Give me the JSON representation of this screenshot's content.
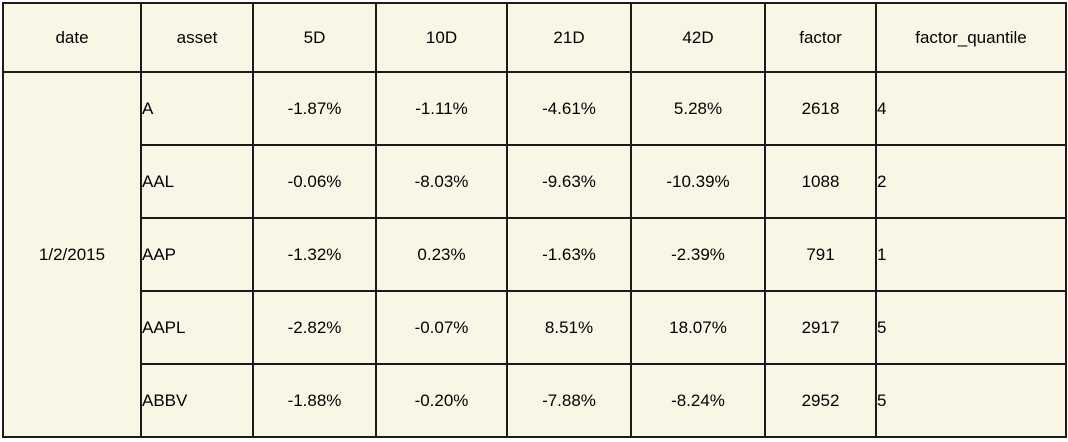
{
  "table": {
    "headers": {
      "date": "date",
      "asset": "asset",
      "d5": "5D",
      "d10": "10D",
      "d21": "21D",
      "d42": "42D",
      "factor": "factor",
      "factor_quantile": "factor_quantile"
    },
    "date": "1/2/2015",
    "rows": [
      {
        "asset": "A",
        "d5": "-1.87%",
        "d10": "-1.11%",
        "d21": "-4.61%",
        "d42": "5.28%",
        "factor": "2618",
        "factor_quantile": "4"
      },
      {
        "asset": "AAL",
        "d5": "-0.06%",
        "d10": "-8.03%",
        "d21": "-9.63%",
        "d42": "-10.39%",
        "factor": "1088",
        "factor_quantile": "2"
      },
      {
        "asset": "AAP",
        "d5": "-1.32%",
        "d10": "0.23%",
        "d21": "-1.63%",
        "d42": "-2.39%",
        "factor": "791",
        "factor_quantile": "1"
      },
      {
        "asset": "AAPL",
        "d5": "-2.82%",
        "d10": "-0.07%",
        "d21": "8.51%",
        "d42": "18.07%",
        "factor": "2917",
        "factor_quantile": "5"
      },
      {
        "asset": "ABBV",
        "d5": "-1.88%",
        "d10": "-0.20%",
        "d21": "-7.88%",
        "d42": "-8.24%",
        "factor": "2952",
        "factor_quantile": "5"
      }
    ]
  },
  "colors": {
    "table_background": "#faf6e6",
    "border": "#1b1b1b",
    "text": "#000000",
    "page_background": "#ffffff"
  }
}
